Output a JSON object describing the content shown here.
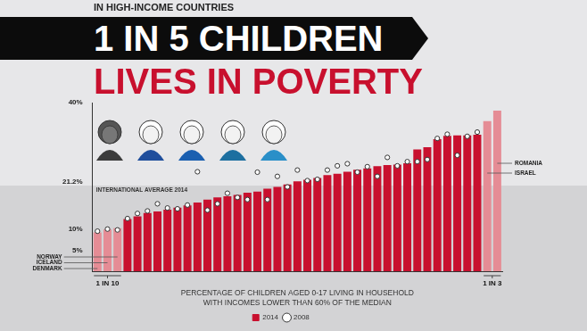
{
  "chart_data": {
    "type": "bar",
    "kicker": "IN HIGH-INCOME COUNTRIES",
    "title": "1 IN 5 CHILDREN",
    "subtitle": "LIVES IN POVERTY",
    "categories": [
      "DENMARK",
      "ICELAND",
      "NORWAY",
      null,
      null,
      null,
      null,
      null,
      null,
      null,
      null,
      null,
      null,
      null,
      null,
      null,
      null,
      null,
      null,
      null,
      null,
      null,
      null,
      null,
      null,
      null,
      null,
      null,
      null,
      null,
      null,
      null,
      null,
      null,
      null,
      null,
      null,
      null,
      null,
      "ISRAEL",
      "ROMANIA"
    ],
    "series": [
      {
        "name": "2014",
        "type": "bar",
        "color": "#c8102e",
        "colors": [
          "#e58c95",
          "#e58c95",
          "#e58c95",
          "#c8102e",
          "#c8102e",
          "#c8102e",
          "#c8102e",
          "#c8102e",
          "#c8102e",
          "#c8102e",
          "#c8102e",
          "#c8102e",
          "#c8102e",
          "#c8102e",
          "#c8102e",
          "#c8102e",
          "#c8102e",
          "#c8102e",
          "#c8102e",
          "#c8102e",
          "#c8102e",
          "#c8102e",
          "#c8102e",
          "#c8102e",
          "#c8102e",
          "#c8102e",
          "#c8102e",
          "#c8102e",
          "#c8102e",
          "#c8102e",
          "#c8102e",
          "#c8102e",
          "#c8102e",
          "#c8102e",
          "#c8102e",
          "#c8102e",
          "#c8102e",
          "#c8102e",
          "#c8102e",
          "#e58c95",
          "#e58c95"
        ],
        "values": [
          9.2,
          9.9,
          10.2,
          12.4,
          13.0,
          13.8,
          14.2,
          14.6,
          15.1,
          15.6,
          16.3,
          17.0,
          17.5,
          17.8,
          18.1,
          18.6,
          18.9,
          19.6,
          20.0,
          20.6,
          21.3,
          21.7,
          22.1,
          22.8,
          23.1,
          23.6,
          24.1,
          24.4,
          24.9,
          25.2,
          25.3,
          25.6,
          28.9,
          29.4,
          31.3,
          32.1,
          32.2,
          32.2,
          32.4,
          35.6,
          38.1
        ]
      },
      {
        "name": "2008",
        "type": "line",
        "line_style": "none",
        "marker": "circle",
        "color": "#ffffff",
        "values": [
          9.5,
          10.0,
          9.8,
          12.5,
          13.7,
          14.3,
          16.0,
          15.0,
          14.8,
          15.7,
          23.6,
          14.5,
          16.0,
          18.5,
          17.5,
          17.0,
          23.5,
          17.0,
          22.5,
          20.0,
          24.0,
          21.5,
          21.8,
          24.0,
          25.0,
          25.5,
          23.5,
          24.8,
          22.5,
          27.0,
          25.0,
          26.0,
          26.0,
          26.5,
          31.5,
          32.5,
          27.5,
          32.0,
          33.0,
          null,
          null
        ]
      }
    ],
    "ylim": [
      0,
      40
    ],
    "yticks": [
      {
        "value": 5,
        "label": "5%"
      },
      {
        "value": 10,
        "label": "10%"
      },
      {
        "value": 21.2,
        "label": "21.2%"
      },
      {
        "value": 40,
        "label": "40%"
      }
    ],
    "grid": false,
    "legend": "bottom",
    "tick_labels": "y",
    "annotations": [
      {
        "text": "INTERNATIONAL AVERAGE 2014",
        "y": 21.2
      },
      {
        "text": "1 IN 10"
      },
      {
        "text": "1 IN 3"
      }
    ],
    "caption": [
      "PERCENTAGE OF CHILDREN AGED 0-17 LIVING IN HOUSEHOLD",
      "WITH INCOMES LOWER THAN 60% OF THE MEDIAN"
    ]
  }
}
